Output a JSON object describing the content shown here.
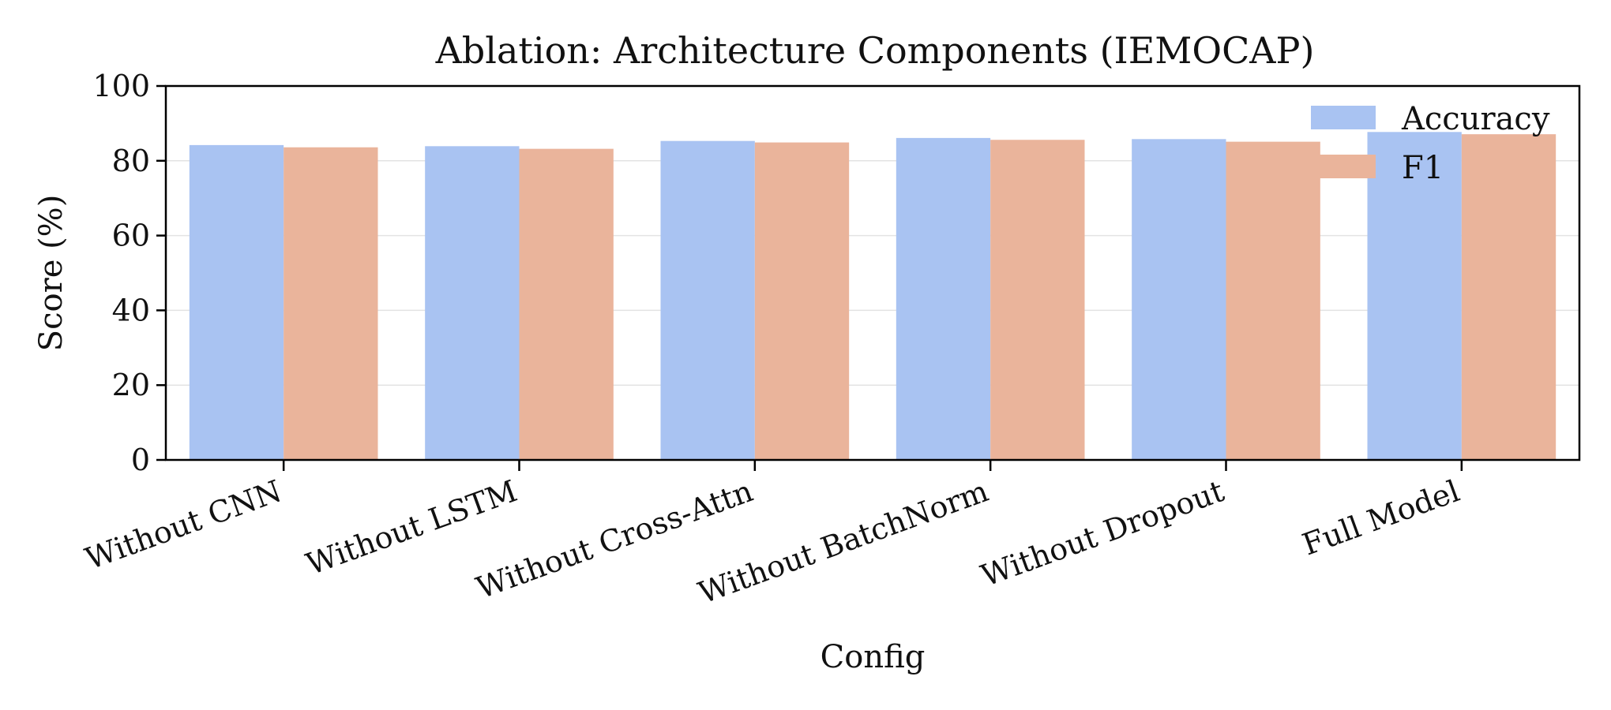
{
  "chart_data": {
    "type": "bar",
    "title": "Ablation: Architecture Components (IEMOCAP)",
    "xlabel": "Config",
    "ylabel": "Score (%)",
    "categories": [
      "Without CNN",
      "Without LSTM",
      "Without Cross-Attn",
      "Without BatchNorm",
      "Without Dropout",
      "Full Model"
    ],
    "series": [
      {
        "name": "Accuracy",
        "values": [
          84.2,
          83.9,
          85.3,
          86.1,
          85.8,
          87.7
        ],
        "color": "#a9c3f2"
      },
      {
        "name": "F1",
        "values": [
          83.6,
          83.2,
          84.9,
          85.6,
          85.1,
          87.1
        ],
        "color": "#eab49b"
      }
    ],
    "ylim": [
      0,
      100
    ],
    "yticks": [
      0,
      20,
      40,
      60,
      80,
      100
    ],
    "grid": "horizontal",
    "legend_position": "top-right"
  }
}
